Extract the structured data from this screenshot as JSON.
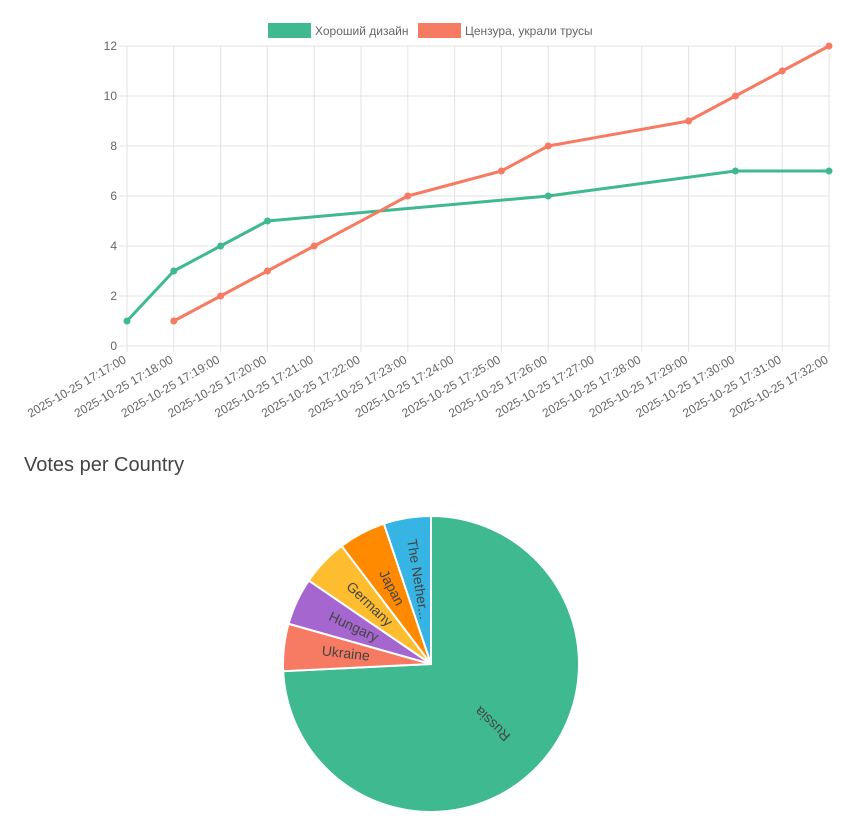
{
  "chart_data": [
    {
      "type": "line",
      "title": "",
      "xlabel": "",
      "ylabel": "",
      "x": [
        "2025-10-25 17:17:00",
        "2025-10-25 17:18:00",
        "2025-10-25 17:19:00",
        "2025-10-25 17:20:00",
        "2025-10-25 17:21:00",
        "2025-10-25 17:22:00",
        "2025-10-25 17:23:00",
        "2025-10-25 17:24:00",
        "2025-10-25 17:25:00",
        "2025-10-25 17:26:00",
        "2025-10-25 17:27:00",
        "2025-10-25 17:28:00",
        "2025-10-25 17:29:00",
        "2025-10-25 17:30:00",
        "2025-10-25 17:31:00",
        "2025-10-25 17:32:00"
      ],
      "ylim": [
        0,
        12
      ],
      "yticks": [
        0,
        2,
        4,
        6,
        8,
        10,
        12
      ],
      "grid": true,
      "legend_position": "top",
      "series": [
        {
          "name": "Хороший дизайн",
          "color": "#3fb98f",
          "points": [
            {
              "x": "2025-10-25 17:17:00",
              "y": 1
            },
            {
              "x": "2025-10-25 17:18:00",
              "y": 3
            },
            {
              "x": "2025-10-25 17:19:00",
              "y": 4
            },
            {
              "x": "2025-10-25 17:20:00",
              "y": 5
            },
            {
              "x": "2025-10-25 17:26:00",
              "y": 6
            },
            {
              "x": "2025-10-25 17:30:00",
              "y": 7
            },
            {
              "x": "2025-10-25 17:32:00",
              "y": 7
            }
          ]
        },
        {
          "name": "Цензура, украли трусы",
          "color": "#f77a62",
          "points": [
            {
              "x": "2025-10-25 17:18:00",
              "y": 1
            },
            {
              "x": "2025-10-25 17:19:00",
              "y": 2
            },
            {
              "x": "2025-10-25 17:20:00",
              "y": 3
            },
            {
              "x": "2025-10-25 17:21:00",
              "y": 4
            },
            {
              "x": "2025-10-25 17:23:00",
              "y": 6
            },
            {
              "x": "2025-10-25 17:25:00",
              "y": 7
            },
            {
              "x": "2025-10-25 17:26:00",
              "y": 8
            },
            {
              "x": "2025-10-25 17:29:00",
              "y": 9
            },
            {
              "x": "2025-10-25 17:30:00",
              "y": 10
            },
            {
              "x": "2025-10-25 17:31:00",
              "y": 11
            },
            {
              "x": "2025-10-25 17:32:00",
              "y": 12
            }
          ]
        }
      ]
    },
    {
      "type": "pie",
      "title": "Votes per Country",
      "slices": [
        {
          "label": "Russia",
          "value": 72,
          "color": "#3fb98f"
        },
        {
          "label": "Ukraine",
          "value": 5,
          "color": "#f77a62"
        },
        {
          "label": "Hungary",
          "value": 5,
          "color": "#a666cf"
        },
        {
          "label": "Germany",
          "value": 5,
          "color": "#fdbd2f"
        },
        {
          "label": "Japan",
          "value": 5,
          "color": "#ff8a00"
        },
        {
          "label": "The Nether...",
          "value": 5,
          "color": "#36b5e5"
        }
      ]
    }
  ]
}
